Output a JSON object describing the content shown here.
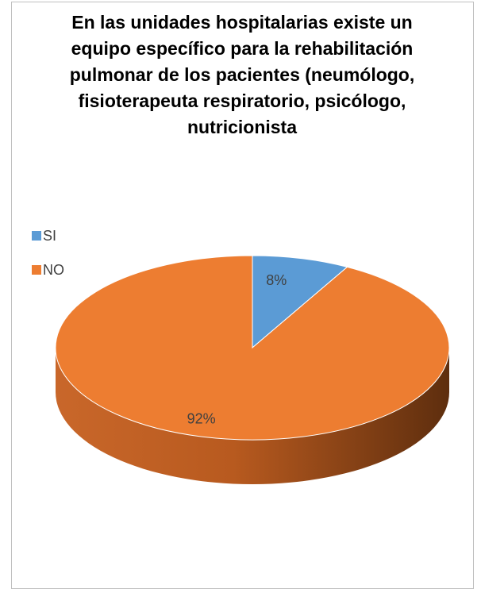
{
  "chart_data": {
    "type": "pie",
    "title": "En las unidades hospitalarias existe un equipo específico para la rehabilitación pulmonar de los pacientes (neumólogo, fisioterapeuta respiratorio, psicólogo, nutricionista",
    "categories": [
      "SI",
      "NO"
    ],
    "values": [
      8,
      92
    ],
    "value_labels": [
      "8%",
      "92%"
    ],
    "colors": [
      "#5b9bd5",
      "#ed7d31"
    ],
    "legend": "top-left"
  }
}
